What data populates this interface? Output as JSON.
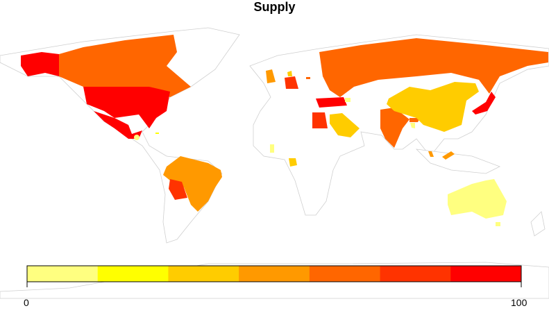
{
  "title": "Supply",
  "legend": {
    "min_label": "0",
    "max_label": "100",
    "range": [
      0,
      100
    ],
    "colors": [
      "#FFFF80",
      "#FFFF00",
      "#FFCC00",
      "#FF9900",
      "#FF6600",
      "#FF3300",
      "#FF0000"
    ]
  },
  "regions": {
    "alaska": 6,
    "usa": 6,
    "mexico": 6,
    "canada": 4,
    "guatemala": 0,
    "jamaica": 1,
    "brazil": 3,
    "bolivia": 5,
    "uk": 3,
    "germany": 5,
    "denmark": 2,
    "lithuania": 4,
    "russia": 4,
    "turkey": 6,
    "azerbaijan": 0,
    "egypt": 5,
    "saudi": 2,
    "ghana": 0,
    "gabon": 2,
    "india": 4,
    "bangladesh": 0,
    "bhutan": 4,
    "china": 2,
    "japan": 6,
    "malaysia": 3,
    "australia": 0
  }
}
